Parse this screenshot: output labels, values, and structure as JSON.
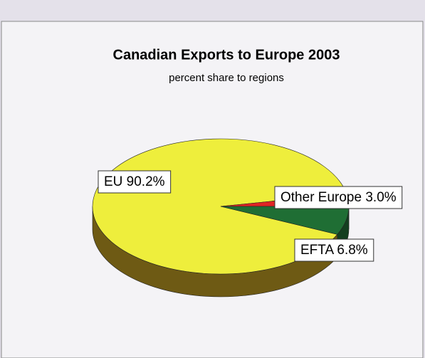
{
  "chart_data": {
    "type": "pie",
    "title": "Canadian Exports to Europe 2003",
    "subtitle": "percent share to regions",
    "values": [
      90.2,
      3.0,
      6.8
    ],
    "value_labels": [
      "EU 90.2%",
      "Other Europe 3.0%",
      "EFTA 6.8%"
    ],
    "colors": [
      "#eeee3c",
      "#e02424",
      "#1f6e34"
    ],
    "side_colors": [
      "#6e5a14",
      "#8a1a1a",
      "#143f20"
    ]
  }
}
